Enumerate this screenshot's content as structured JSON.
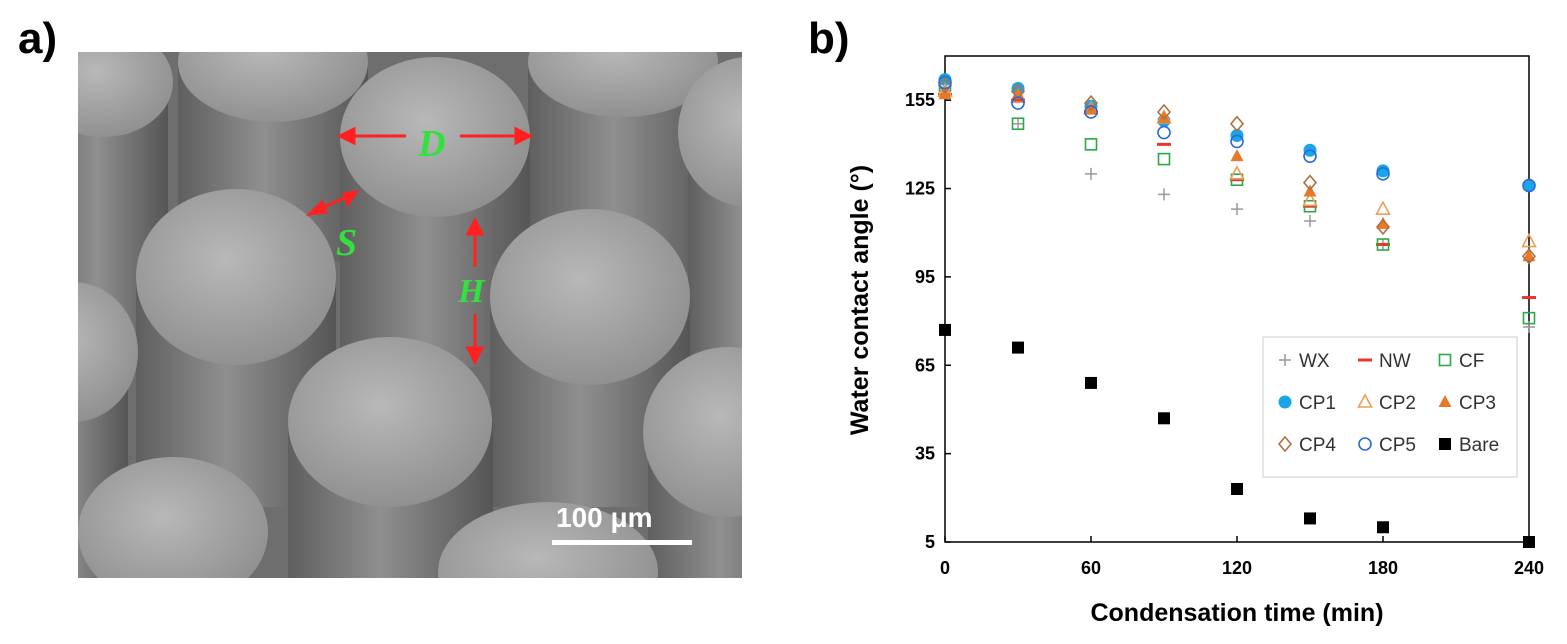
{
  "panel_a": {
    "label": "a)",
    "annotations": {
      "D": "D",
      "S": "S",
      "H": "H"
    },
    "scale_bar": "100 μm"
  },
  "panel_b": {
    "label": "b)"
  },
  "chart_data": {
    "type": "scatter",
    "title": "",
    "xlabel": "Condensation time (min)",
    "ylabel": "Water contact angle (°)",
    "xlim": [
      0,
      240
    ],
    "ylim": [
      5,
      170
    ],
    "xticks": [
      0,
      60,
      120,
      180,
      240
    ],
    "yticks": [
      5,
      35,
      65,
      95,
      125,
      155
    ],
    "grid": false,
    "legend_position": "bottom-right",
    "series": [
      {
        "name": "WX",
        "marker": "plus",
        "color": "#999999",
        "x": [
          0,
          30,
          60,
          90,
          120,
          150,
          180,
          240
        ],
        "y": [
          159,
          147,
          130,
          123,
          118,
          114,
          106,
          78
        ]
      },
      {
        "name": "NW",
        "marker": "dash",
        "color": "#e8362d",
        "x": [
          0,
          30,
          60,
          90,
          120,
          150,
          180,
          240
        ],
        "y": [
          157,
          155,
          151,
          140,
          128,
          119,
          106,
          88
        ]
      },
      {
        "name": "CF",
        "marker": "open-square",
        "color": "#2aa84a",
        "x": [
          0,
          30,
          60,
          90,
          120,
          150,
          180,
          240
        ],
        "y": [
          160,
          147,
          140,
          135,
          128,
          119,
          106,
          81
        ]
      },
      {
        "name": "CP1",
        "marker": "filled-circle",
        "color": "#1aa6e6",
        "x": [
          0,
          30,
          60,
          90,
          120,
          150,
          180,
          240
        ],
        "y": [
          162,
          159,
          153,
          148,
          143,
          138,
          131,
          126
        ]
      },
      {
        "name": "CP2",
        "marker": "open-triangle",
        "color": "#e8a05a",
        "x": [
          0,
          30,
          60,
          90,
          120,
          150,
          180,
          240
        ],
        "y": [
          158,
          156,
          152,
          149,
          130,
          121,
          118,
          107
        ]
      },
      {
        "name": "CP3",
        "marker": "filled-triangle",
        "color": "#e8782a",
        "x": [
          0,
          30,
          60,
          90,
          120,
          150,
          180,
          240
        ],
        "y": [
          157,
          157,
          152,
          149,
          136,
          124,
          113,
          102
        ]
      },
      {
        "name": "CP4",
        "marker": "open-diamond",
        "color": "#b07040",
        "x": [
          0,
          30,
          60,
          90,
          120,
          150,
          180,
          240
        ],
        "y": [
          160,
          158,
          154,
          151,
          147,
          127,
          112,
          102
        ]
      },
      {
        "name": "CP5",
        "marker": "open-circle",
        "color": "#2a6ad8",
        "x": [
          0,
          30,
          60,
          90,
          120,
          150,
          180,
          240
        ],
        "y": [
          161,
          154,
          151,
          144,
          141,
          136,
          130,
          126
        ]
      },
      {
        "name": "Bare",
        "marker": "filled-square",
        "color": "#000000",
        "x": [
          0,
          30,
          60,
          90,
          120,
          150,
          180,
          240
        ],
        "y": [
          77,
          71,
          59,
          47,
          23,
          13,
          10,
          5
        ]
      }
    ]
  }
}
